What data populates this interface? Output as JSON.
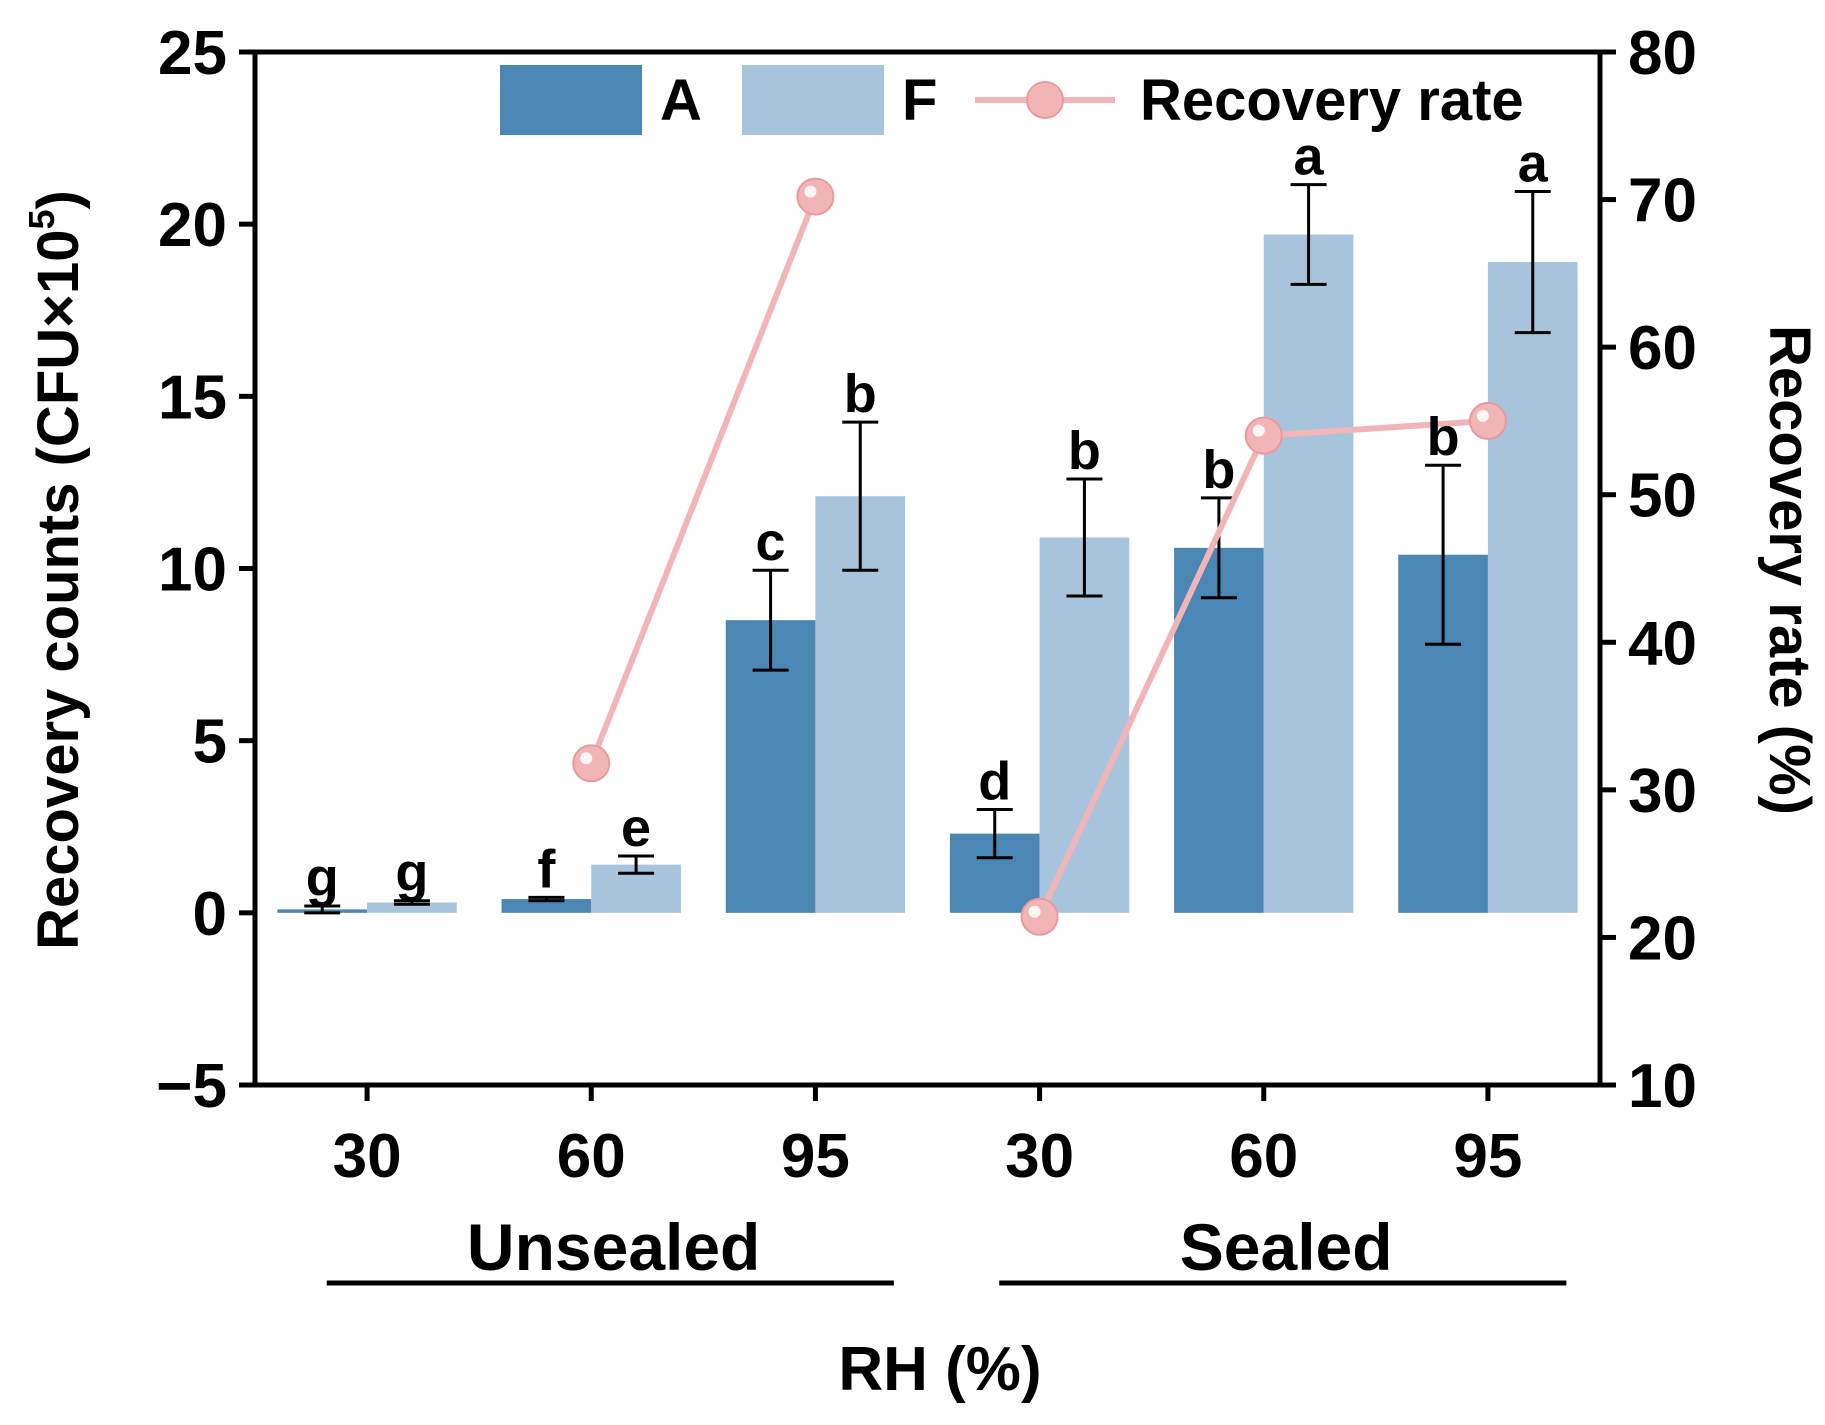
{
  "chart_data": {
    "type": "bar",
    "categories": [
      "30",
      "60",
      "95",
      "30",
      "60",
      "95"
    ],
    "groups": [
      {
        "label": "Unsealed",
        "indices": [
          0,
          1,
          2
        ]
      },
      {
        "label": "Sealed",
        "indices": [
          3,
          4,
          5
        ]
      }
    ],
    "xlabel": "RH (%)",
    "ylabel_prefix": "Recovery counts (CFU×10",
    "ylabel_exponent": "5",
    "ylabel_suffix": ")",
    "ylim": [
      -5,
      25
    ],
    "yticks": [
      -5,
      0,
      5,
      10,
      15,
      20,
      25
    ],
    "y2label": "Recovery rate (%)",
    "y2lim": [
      10,
      80
    ],
    "y2ticks": [
      10,
      20,
      30,
      40,
      50,
      60,
      70,
      80
    ],
    "legend_position": "top",
    "series": [
      {
        "name": "A",
        "kind": "bar",
        "axis": "left",
        "color": "#4a87b4",
        "values": [
          0.1,
          0.4,
          8.5,
          2.3,
          10.6,
          10.4
        ],
        "errors": [
          0.1,
          0.05,
          1.45,
          0.7,
          1.45,
          2.6
        ],
        "significance": [
          "g",
          "f",
          "c",
          "d",
          "b",
          "b"
        ]
      },
      {
        "name": "F",
        "kind": "bar",
        "axis": "left",
        "color": "#a8c4dc",
        "values": [
          0.3,
          1.4,
          12.1,
          10.9,
          19.7,
          18.9
        ],
        "errors": [
          0.05,
          0.25,
          2.15,
          1.7,
          1.45,
          2.05
        ],
        "significance": [
          "g",
          "e",
          "b",
          "b",
          "a",
          "a"
        ]
      },
      {
        "name": "Recovery rate",
        "kind": "line",
        "axis": "right",
        "color": "#f2b5b7",
        "segments": [
          {
            "x_index": [
              1,
              2
            ],
            "values": [
              31.8,
              70.2
            ]
          },
          {
            "x_index": [
              3,
              4,
              5
            ],
            "values": [
              21.4,
              54.0,
              55.0
            ]
          }
        ]
      }
    ]
  }
}
